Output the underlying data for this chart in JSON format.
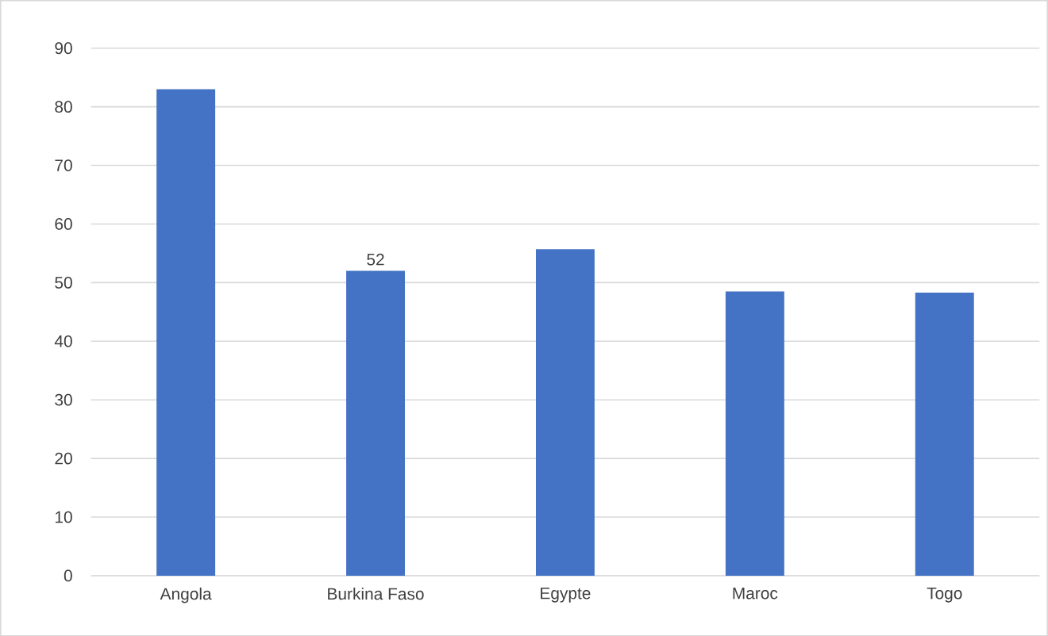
{
  "chart_data": {
    "type": "bar",
    "categories": [
      "Angola",
      "Burkina Faso",
      "Egypte",
      "Maroc",
      "Togo"
    ],
    "values": [
      83.0,
      52,
      55.7,
      48.5,
      48.3
    ],
    "value_labels": [
      null,
      "52",
      null,
      null,
      null
    ],
    "color": "#4472c4",
    "ylim": [
      0,
      90
    ],
    "yticks": [
      0,
      10,
      20,
      30,
      40,
      50,
      60,
      70,
      80,
      90
    ],
    "grid": "y"
  }
}
